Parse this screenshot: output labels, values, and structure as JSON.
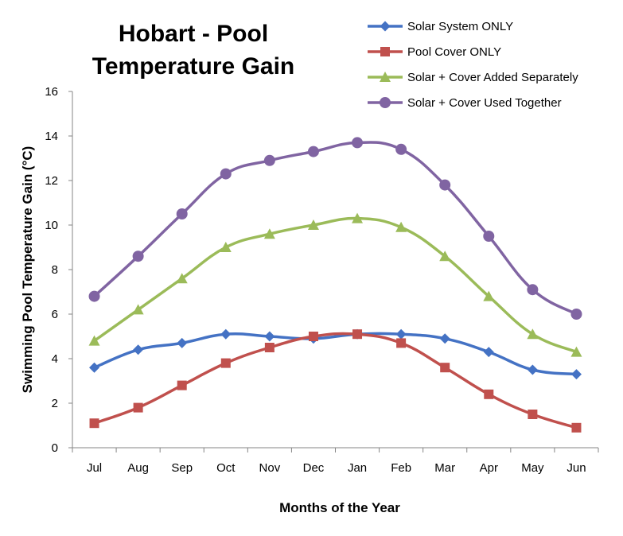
{
  "chart_data": {
    "type": "line",
    "title_lines": [
      "Hobart - Pool",
      "Temperature Gain"
    ],
    "xlabel": "Months of the Year",
    "ylabel": "Swimming Pool Temperature  Gain (°C)",
    "categories": [
      "Jul",
      "Aug",
      "Sep",
      "Oct",
      "Nov",
      "Dec",
      "Jan",
      "Feb",
      "Mar",
      "Apr",
      "May",
      "Jun"
    ],
    "ylim": [
      0,
      16
    ],
    "yticks": [
      0,
      2,
      4,
      6,
      8,
      10,
      12,
      14,
      16
    ],
    "grid": false,
    "legend_position": "top-right",
    "series": [
      {
        "name": "Solar System ONLY",
        "color": "#4472C4",
        "marker": "diamond",
        "values": [
          3.6,
          4.4,
          4.7,
          5.1,
          5.0,
          4.9,
          5.1,
          5.1,
          4.9,
          4.3,
          3.5,
          3.3
        ]
      },
      {
        "name": "Pool Cover ONLY",
        "color": "#C0504D",
        "marker": "square",
        "values": [
          1.1,
          1.8,
          2.8,
          3.8,
          4.5,
          5.0,
          5.1,
          4.7,
          3.6,
          2.4,
          1.5,
          0.9
        ]
      },
      {
        "name": "Solar + Cover Added Separately",
        "color": "#9BBB59",
        "marker": "triangle",
        "values": [
          4.8,
          6.2,
          7.6,
          9.0,
          9.6,
          10.0,
          10.3,
          9.9,
          8.6,
          6.8,
          5.1,
          4.3
        ]
      },
      {
        "name": "Solar + Cover Used Together",
        "color": "#8064A2",
        "marker": "circle",
        "values": [
          6.8,
          8.6,
          10.5,
          12.3,
          12.9,
          13.3,
          13.7,
          13.4,
          11.8,
          9.5,
          7.1,
          6.0
        ]
      }
    ]
  }
}
